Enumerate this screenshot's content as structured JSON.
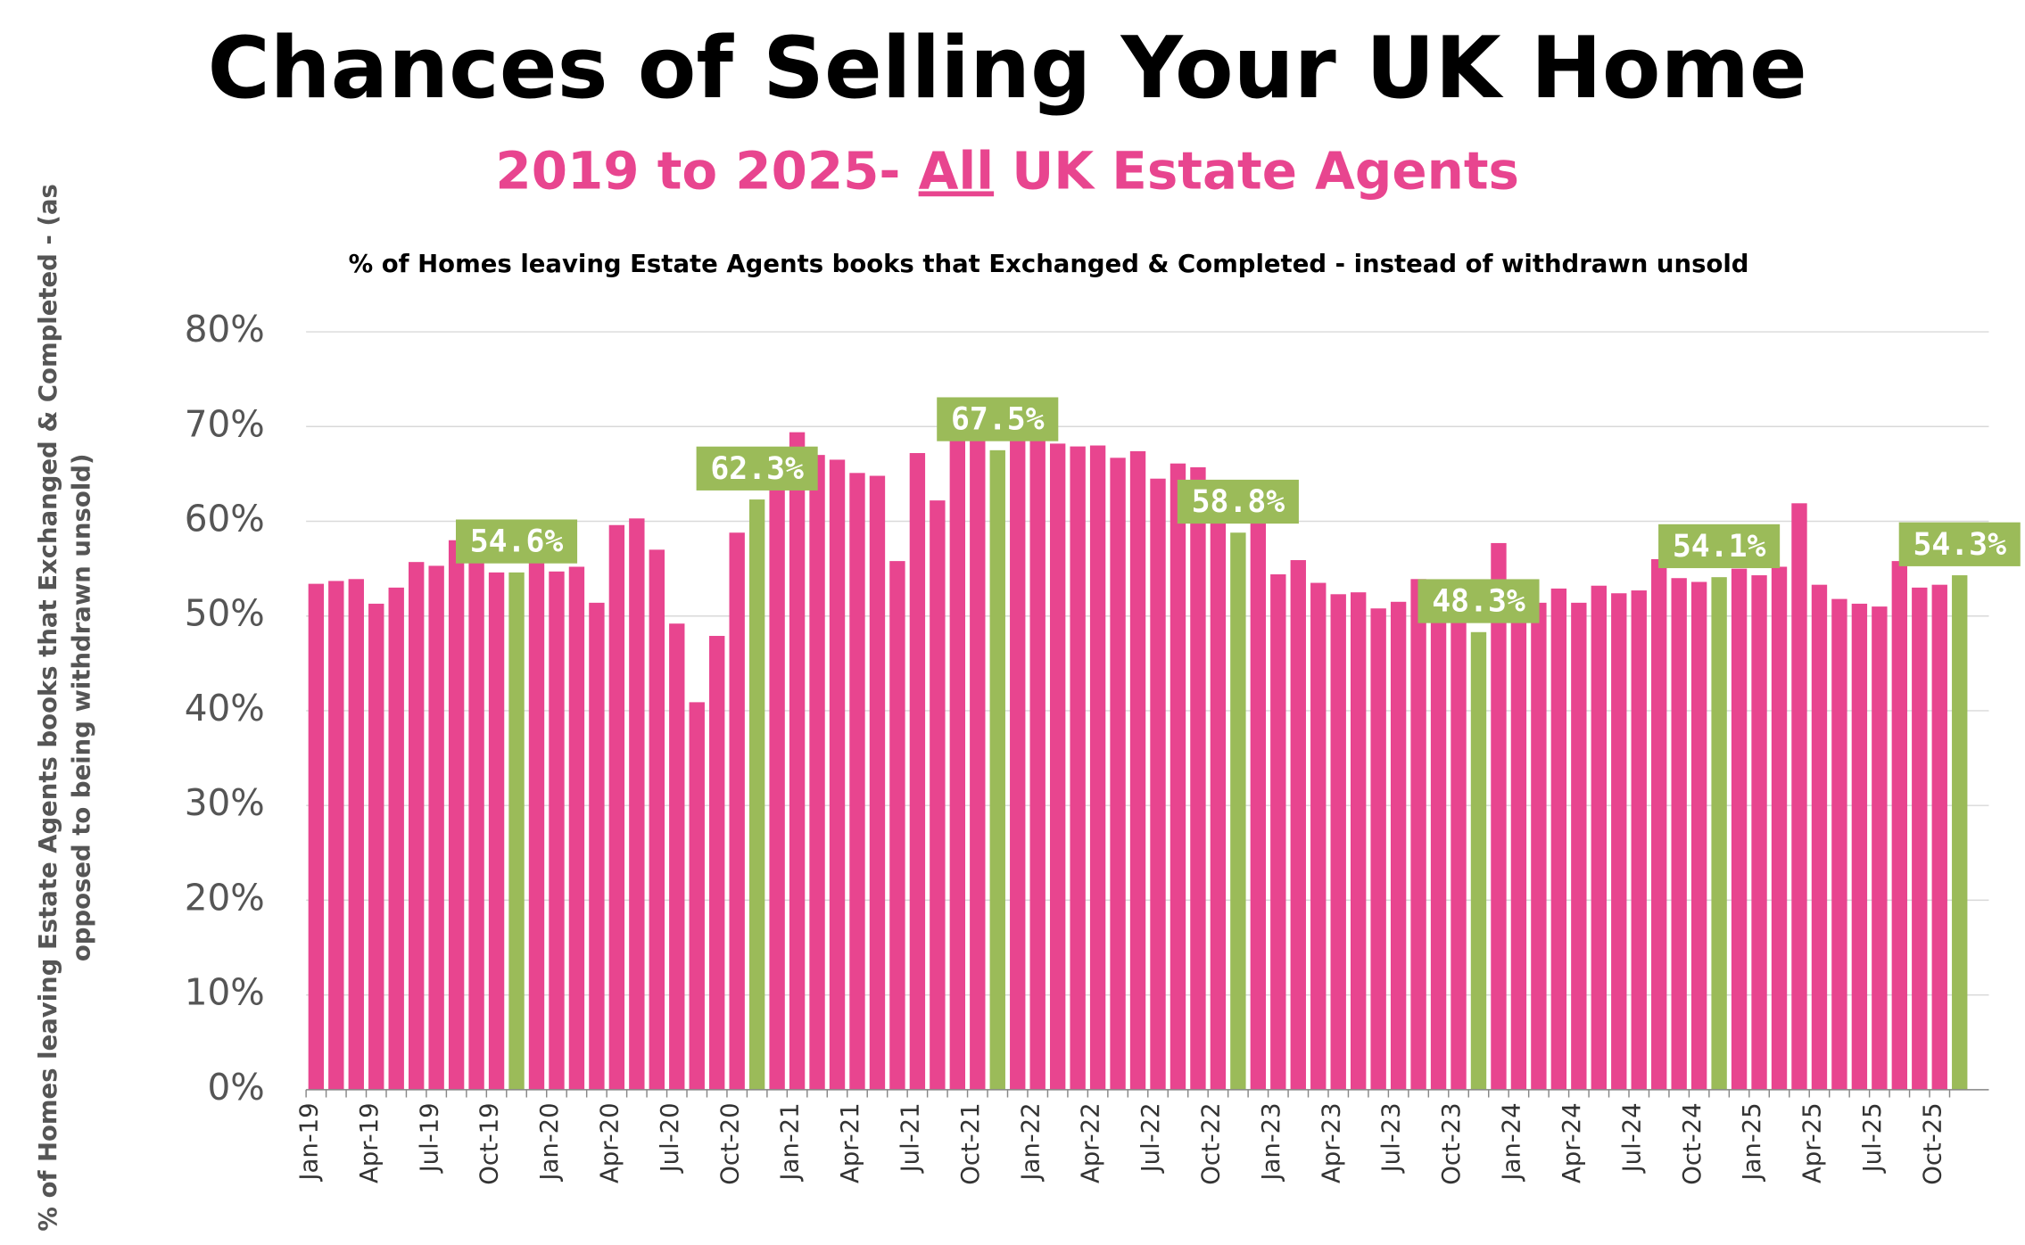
{
  "chart_data": {
    "type": "bar",
    "title": "Chances of Selling Your UK Home",
    "subtitle": [
      "2019 to 2025- ",
      "All",
      " UK Estate Agents"
    ],
    "note": "% of Homes leaving Estate Agents books that Exchanged & Completed - instead of withdrawn unsold",
    "ylabel": [
      "% of Homes leaving Estate Agents books that Exchanged & Completed - (as",
      "opposed to being withdrawn unsold)"
    ],
    "categories": [
      "Jan-19",
      null,
      null,
      "Apr-19",
      null,
      null,
      "Jul-19",
      null,
      null,
      "Oct-19",
      null,
      null,
      "Jan-20",
      null,
      null,
      "Apr-20",
      null,
      null,
      "Jul-20",
      null,
      null,
      "Oct-20",
      null,
      null,
      "Jan-21",
      null,
      null,
      "Apr-21",
      null,
      null,
      "Jul-21",
      null,
      null,
      "Oct-21",
      null,
      null,
      "Jan-22",
      null,
      null,
      "Apr-22",
      null,
      null,
      "Jul-22",
      null,
      null,
      "Oct-22",
      null,
      null,
      "Jan-23",
      null,
      null,
      "Apr-23",
      null,
      null,
      "Jul-23",
      null,
      null,
      "Oct-23",
      null,
      null,
      "Jan-24",
      null,
      null,
      "Apr-24",
      null,
      null,
      "Jul-24",
      null,
      null,
      "Oct-24",
      null,
      null,
      "Jan-25",
      null,
      null,
      "Apr-25",
      null,
      null,
      "Jul-25",
      null,
      null,
      "Oct-25",
      null
    ],
    "values": [
      53.4,
      53.7,
      53.9,
      51.3,
      53.0,
      55.7,
      55.3,
      58.0,
      57.0,
      54.6,
      54.6,
      55.8,
      54.7,
      55.2,
      51.4,
      59.6,
      60.3,
      57.0,
      49.2,
      40.9,
      47.9,
      58.8,
      62.3,
      64.0,
      69.4,
      67.0,
      66.5,
      65.1,
      64.8,
      55.8,
      67.2,
      62.2,
      70.6,
      70.0,
      67.5,
      70.0,
      70.0,
      68.2,
      67.9,
      68.0,
      66.7,
      67.4,
      64.5,
      66.1,
      65.7,
      62.0,
      58.8,
      62.0,
      54.4,
      55.9,
      53.5,
      52.3,
      52.5,
      50.8,
      51.5,
      53.9,
      53.0,
      51.0,
      48.3,
      57.7,
      53.0,
      51.4,
      52.9,
      51.4,
      53.2,
      52.4,
      52.7,
      56.0,
      54.0,
      53.6,
      54.1,
      55.0,
      54.3,
      55.2,
      61.9,
      53.3,
      51.8,
      51.3,
      51.0,
      55.8,
      53.0,
      53.3,
      54.3
    ],
    "value_labels": [
      null,
      null,
      null,
      null,
      null,
      null,
      null,
      null,
      null,
      null,
      "54.6%",
      null,
      null,
      null,
      null,
      null,
      null,
      null,
      null,
      null,
      null,
      null,
      "62.3%",
      null,
      null,
      null,
      null,
      null,
      null,
      null,
      null,
      null,
      null,
      null,
      "67.5%",
      null,
      null,
      null,
      null,
      null,
      null,
      null,
      null,
      null,
      null,
      null,
      "58.8%",
      null,
      null,
      null,
      null,
      null,
      null,
      null,
      null,
      null,
      null,
      null,
      "48.3%",
      null,
      null,
      null,
      null,
      null,
      null,
      null,
      null,
      null,
      null,
      null,
      "54.1%",
      null,
      null,
      null,
      null,
      null,
      null,
      null,
      null,
      null,
      null,
      null,
      "54.3%"
    ],
    "color": "#e8458f",
    "highlight_color": "#9bbb59",
    "ylim": [
      0,
      80
    ],
    "yticks": [
      {
        "value": 0,
        "label": "0%"
      },
      {
        "value": 10,
        "label": "10%"
      },
      {
        "value": 20,
        "label": "20%"
      },
      {
        "value": 30,
        "label": "30%"
      },
      {
        "value": 40,
        "label": "40%"
      },
      {
        "value": 50,
        "label": "50%"
      },
      {
        "value": 60,
        "label": "60%"
      },
      {
        "value": 70,
        "label": "70%"
      },
      {
        "value": 80,
        "label": "80%"
      }
    ],
    "grid": true
  }
}
